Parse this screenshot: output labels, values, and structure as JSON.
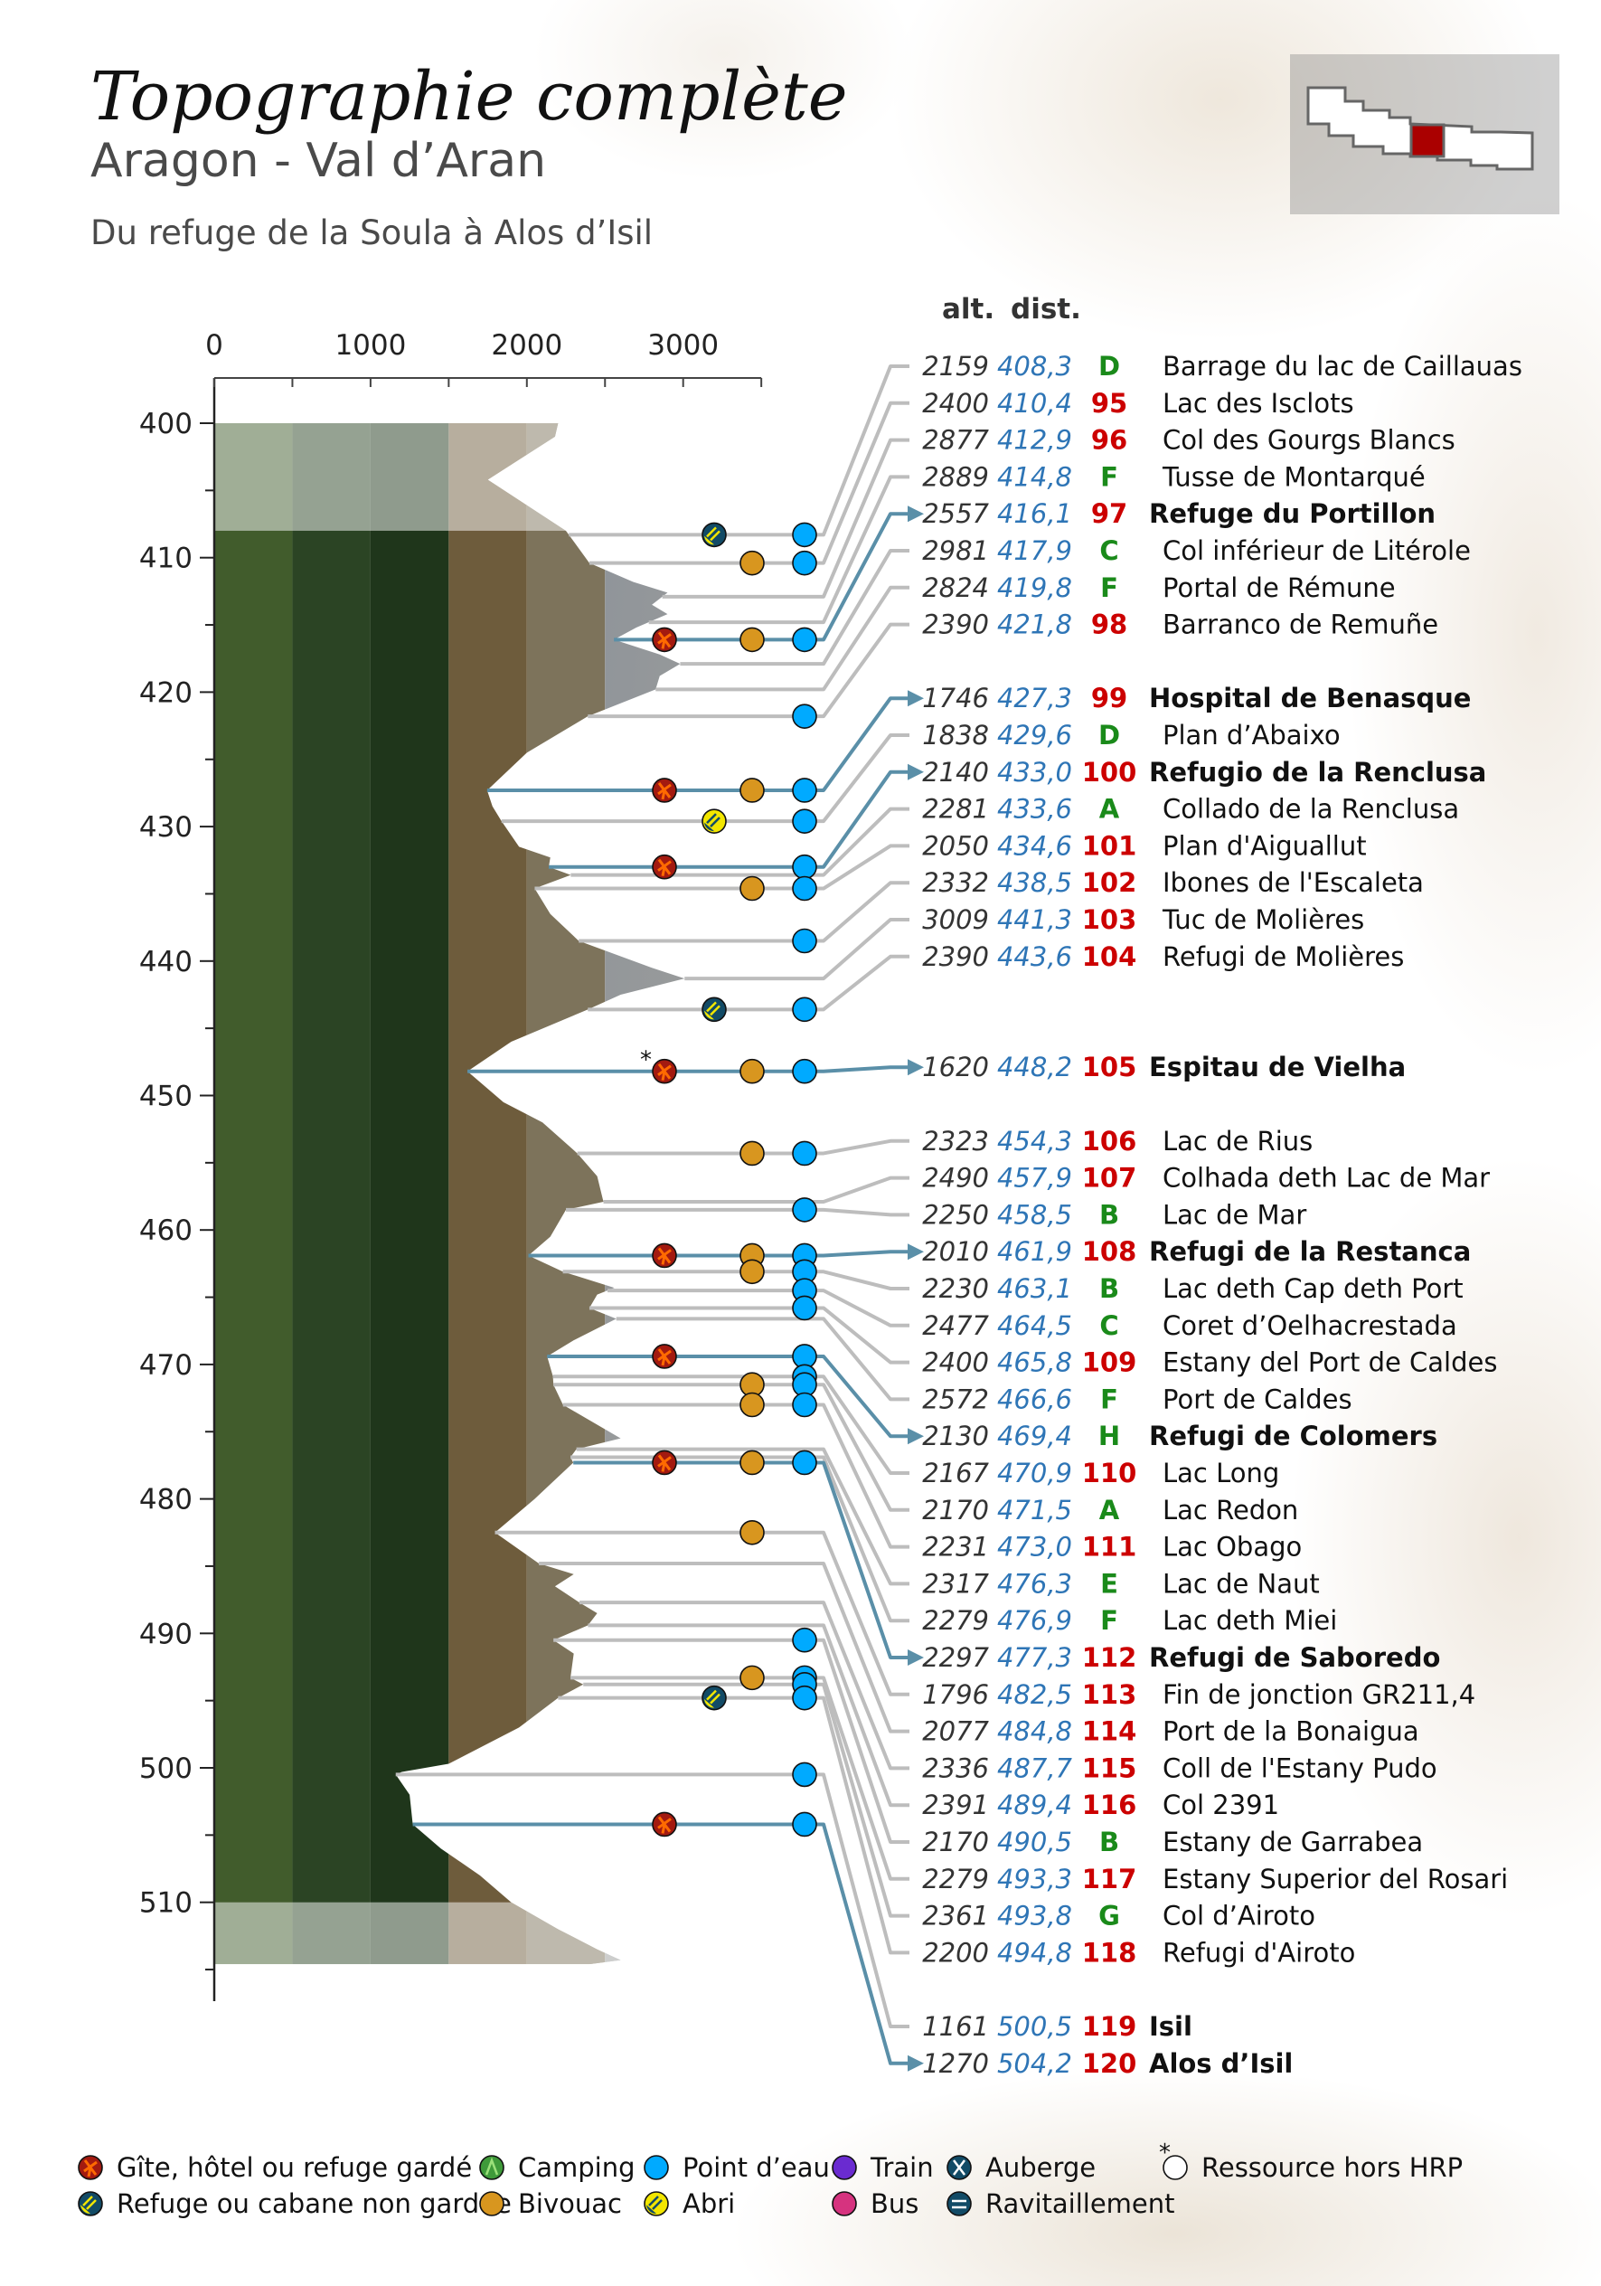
{
  "header": {
    "title": "Topographie complète",
    "region": "Aragon - Val d’Aran",
    "subtitle": "Du refuge de la Soula à Alos d’Isil"
  },
  "columns": {
    "alt": "alt.",
    "dist": "dist."
  },
  "colors": {
    "alt_text": "#333333",
    "dist_text": "#2e75b6",
    "stage_number": "#cc0000",
    "water_code": "#1a8a1a",
    "leader_line": "#bdbdbd",
    "refuge_line": "#5a8fa8",
    "minimap_highlight": "#aa0000"
  },
  "chart_data": {
    "type": "area",
    "orientation": "vertical-distance",
    "xlabel": "",
    "ylabel": "",
    "x_axis_ticks": [
      "0",
      "1000",
      "2000",
      "3000"
    ],
    "xlim": [
      0,
      3500
    ],
    "y_axis_ticks": [
      "400",
      "410",
      "420",
      "430",
      "440",
      "450",
      "460",
      "470",
      "480",
      "490",
      "500",
      "510"
    ],
    "ylim": [
      400,
      517
    ],
    "altitude_bands": [
      0,
      500,
      1000,
      1500,
      2000,
      2500
    ],
    "profile": [
      [
        400,
        2200
      ],
      [
        401,
        2180
      ],
      [
        404.2,
        1750
      ],
      [
        408,
        2250
      ],
      [
        410.4,
        2400
      ],
      [
        411.8,
        2680
      ],
      [
        412.6,
        2900
      ],
      [
        413.5,
        2800
      ],
      [
        414.2,
        2900
      ],
      [
        415.2,
        2700
      ],
      [
        416.1,
        2557
      ],
      [
        417.2,
        2850
      ],
      [
        417.9,
        2981
      ],
      [
        418.8,
        2850
      ],
      [
        419.8,
        2824
      ],
      [
        421.8,
        2390
      ],
      [
        424.5,
        2000
      ],
      [
        427.3,
        1746
      ],
      [
        428.5,
        1780
      ],
      [
        429.6,
        1838
      ],
      [
        431.5,
        1950
      ],
      [
        432.3,
        2150
      ],
      [
        433,
        2140
      ],
      [
        433.6,
        2281
      ],
      [
        434.6,
        2050
      ],
      [
        436.5,
        2150
      ],
      [
        438.5,
        2332
      ],
      [
        440.5,
        2800
      ],
      [
        441.3,
        3009
      ],
      [
        442.5,
        2600
      ],
      [
        443.6,
        2390
      ],
      [
        446,
        1900
      ],
      [
        448.2,
        1620
      ],
      [
        450.5,
        1850
      ],
      [
        452,
        2100
      ],
      [
        454.3,
        2323
      ],
      [
        456,
        2450
      ],
      [
        457.9,
        2490
      ],
      [
        458.5,
        2250
      ],
      [
        460.5,
        2150
      ],
      [
        461.9,
        2010
      ],
      [
        463.1,
        2230
      ],
      [
        464.3,
        2560
      ],
      [
        464.8,
        2450
      ],
      [
        465.8,
        2400
      ],
      [
        466.6,
        2572
      ],
      [
        468.2,
        2300
      ],
      [
        469.4,
        2130
      ],
      [
        470.9,
        2167
      ],
      [
        471.5,
        2170
      ],
      [
        473,
        2231
      ],
      [
        475.5,
        2600
      ],
      [
        476.3,
        2317
      ],
      [
        476.9,
        2279
      ],
      [
        477.3,
        2297
      ],
      [
        480,
        2050
      ],
      [
        482.5,
        1796
      ],
      [
        484.8,
        2077
      ],
      [
        485.6,
        2300
      ],
      [
        486.5,
        2180
      ],
      [
        487.7,
        2336
      ],
      [
        488.5,
        2450
      ],
      [
        489.4,
        2391
      ],
      [
        490.5,
        2170
      ],
      [
        491.5,
        2300
      ],
      [
        493.3,
        2279
      ],
      [
        493.8,
        2361
      ],
      [
        494.8,
        2200
      ],
      [
        497,
        1950
      ],
      [
        499.7,
        1500
      ],
      [
        500.3,
        1200
      ],
      [
        500.5,
        1161
      ],
      [
        502,
        1250
      ],
      [
        504.2,
        1270
      ],
      [
        506,
        1450
      ],
      [
        508,
        1700
      ],
      [
        510,
        1900
      ],
      [
        512,
        2200
      ],
      [
        513.5,
        2450
      ],
      [
        514.3,
        2600
      ],
      [
        514.6,
        2400
      ]
    ],
    "faded_ranges": [
      [
        400,
        408
      ],
      [
        510,
        514.6
      ]
    ]
  },
  "waypoints": [
    {
      "alt": "2159",
      "dist": "408,3",
      "code": "D",
      "name": "Barrage du lac de Caillauas",
      "bold": false,
      "arrow": false,
      "icons": [
        "refuge-non-gardee",
        "water"
      ]
    },
    {
      "alt": "2400",
      "dist": "410,4",
      "code": "95",
      "name": "Lac des Isclots",
      "bold": false,
      "arrow": false,
      "icons": [
        "bivouac",
        "water"
      ]
    },
    {
      "alt": "2877",
      "dist": "412,9",
      "code": "96",
      "name": "Col des Gourgs Blancs",
      "bold": false,
      "arrow": false,
      "icons": []
    },
    {
      "alt": "2889",
      "dist": "414,8",
      "code": "F",
      "name": "Tusse de Montarqué",
      "bold": false,
      "arrow": false,
      "icons": []
    },
    {
      "alt": "2557",
      "dist": "416,1",
      "code": "97",
      "name": "Refuge du Portillon",
      "bold": true,
      "arrow": true,
      "icons": [
        "gite",
        "bivouac",
        "water"
      ]
    },
    {
      "alt": "2981",
      "dist": "417,9",
      "code": "C",
      "name": "Col inférieur de Litérole",
      "bold": false,
      "arrow": false,
      "icons": []
    },
    {
      "alt": "2824",
      "dist": "419,8",
      "code": "F",
      "name": "Portal de Rémune",
      "bold": false,
      "arrow": false,
      "icons": []
    },
    {
      "alt": "2390",
      "dist": "421,8",
      "code": "98",
      "name": "Barranco de Remuñe",
      "bold": false,
      "arrow": false,
      "icons": [
        "water"
      ]
    },
    {
      "alt": "1746",
      "dist": "427,3",
      "code": "99",
      "name": "Hospital de Benasque",
      "bold": true,
      "arrow": true,
      "icons": [
        "gite",
        "bivouac",
        "water"
      ]
    },
    {
      "alt": "1838",
      "dist": "429,6",
      "code": "D",
      "name": "Plan d’Abaixo",
      "bold": false,
      "arrow": false,
      "icons": [
        "abri",
        "water"
      ]
    },
    {
      "alt": "2140",
      "dist": "433,0",
      "code": "100",
      "name": "Refugio de la Renclusa",
      "bold": true,
      "arrow": true,
      "icons": [
        "gite",
        "water"
      ]
    },
    {
      "alt": "2281",
      "dist": "433,6",
      "code": "A",
      "name": "Collado de la Renclusa",
      "bold": false,
      "arrow": false,
      "icons": []
    },
    {
      "alt": "2050",
      "dist": "434,6",
      "code": "101",
      "name": "Plan d'Aiguallut",
      "bold": false,
      "arrow": false,
      "icons": [
        "bivouac",
        "water"
      ]
    },
    {
      "alt": "2332",
      "dist": "438,5",
      "code": "102",
      "name": "Ibones de l'Escaleta",
      "bold": false,
      "arrow": false,
      "icons": [
        "water"
      ]
    },
    {
      "alt": "3009",
      "dist": "441,3",
      "code": "103",
      "name": "Tuc de Molières",
      "bold": false,
      "arrow": false,
      "icons": []
    },
    {
      "alt": "2390",
      "dist": "443,6",
      "code": "104",
      "name": "Refugi de Molières",
      "bold": false,
      "arrow": false,
      "icons": [
        "refuge-non-gardee",
        "water"
      ]
    },
    {
      "alt": "1620",
      "dist": "448,2",
      "code": "105",
      "name": "Espitau de Vielha",
      "bold": true,
      "arrow": true,
      "hors_hrp": true,
      "icons": [
        "gite",
        "bivouac",
        "water"
      ]
    },
    {
      "alt": "2323",
      "dist": "454,3",
      "code": "106",
      "name": "Lac de Rius",
      "bold": false,
      "arrow": false,
      "icons": [
        "bivouac",
        "water"
      ]
    },
    {
      "alt": "2490",
      "dist": "457,9",
      "code": "107",
      "name": "Colhada deth Lac de Mar",
      "bold": false,
      "arrow": false,
      "icons": []
    },
    {
      "alt": "2250",
      "dist": "458,5",
      "code": "B",
      "name": "Lac de Mar",
      "bold": false,
      "arrow": false,
      "icons": [
        "water"
      ]
    },
    {
      "alt": "2010",
      "dist": "461,9",
      "code": "108",
      "name": "Refugi de la Restanca",
      "bold": true,
      "arrow": true,
      "icons": [
        "gite",
        "bivouac",
        "water"
      ]
    },
    {
      "alt": "2230",
      "dist": "463,1",
      "code": "B",
      "name": "Lac deth Cap deth Port",
      "bold": false,
      "arrow": false,
      "icons": [
        "bivouac",
        "water"
      ]
    },
    {
      "alt": "2477",
      "dist": "464,5",
      "code": "C",
      "name": "Coret d’Oelhacrestada",
      "bold": false,
      "arrow": false,
      "icons": [
        "water"
      ]
    },
    {
      "alt": "2400",
      "dist": "465,8",
      "code": "109",
      "name": "Estany del Port de Caldes",
      "bold": false,
      "arrow": false,
      "icons": [
        "water"
      ]
    },
    {
      "alt": "2572",
      "dist": "466,6",
      "code": "F",
      "name": "Port de Caldes",
      "bold": false,
      "arrow": false,
      "icons": []
    },
    {
      "alt": "2130",
      "dist": "469,4",
      "code": "H",
      "name": "Refugi de Colomers",
      "bold": true,
      "arrow": true,
      "icons": [
        "gite",
        "water"
      ]
    },
    {
      "alt": "2167",
      "dist": "470,9",
      "code": "110",
      "name": "Lac Long",
      "bold": false,
      "arrow": false,
      "icons": [
        "water"
      ]
    },
    {
      "alt": "2170",
      "dist": "471,5",
      "code": "A",
      "name": "Lac Redon",
      "bold": false,
      "arrow": false,
      "icons": [
        "bivouac",
        "water"
      ]
    },
    {
      "alt": "2231",
      "dist": "473,0",
      "code": "111",
      "name": "Lac Obago",
      "bold": false,
      "arrow": false,
      "icons": [
        "bivouac",
        "water"
      ]
    },
    {
      "alt": "2317",
      "dist": "476,3",
      "code": "E",
      "name": "Lac de Naut",
      "bold": false,
      "arrow": false,
      "icons": []
    },
    {
      "alt": "2279",
      "dist": "476,9",
      "code": "F",
      "name": "Lac deth Miei",
      "bold": false,
      "arrow": false,
      "icons": []
    },
    {
      "alt": "2297",
      "dist": "477,3",
      "code": "112",
      "name": "Refugi de Saboredo",
      "bold": true,
      "arrow": true,
      "icons": [
        "gite",
        "bivouac",
        "water"
      ]
    },
    {
      "alt": "1796",
      "dist": "482,5",
      "code": "113",
      "name": "Fin de jonction GR211,4",
      "bold": false,
      "arrow": false,
      "icons": [
        "bivouac"
      ]
    },
    {
      "alt": "2077",
      "dist": "484,8",
      "code": "114",
      "name": "Port de la Bonaigua",
      "bold": false,
      "arrow": false,
      "icons": []
    },
    {
      "alt": "2336",
      "dist": "487,7",
      "code": "115",
      "name": "Coll de l'Estany Pudo",
      "bold": false,
      "arrow": false,
      "icons": []
    },
    {
      "alt": "2391",
      "dist": "489,4",
      "code": "116",
      "name": "Col 2391",
      "bold": false,
      "arrow": false,
      "icons": []
    },
    {
      "alt": "2170",
      "dist": "490,5",
      "code": "B",
      "name": "Estany de Garrabea",
      "bold": false,
      "arrow": false,
      "icons": [
        "water"
      ]
    },
    {
      "alt": "2279",
      "dist": "493,3",
      "code": "117",
      "name": "Estany Superior del Rosari",
      "bold": false,
      "arrow": false,
      "icons": [
        "bivouac",
        "water"
      ]
    },
    {
      "alt": "2361",
      "dist": "493,8",
      "code": "G",
      "name": "Col d’Airoto",
      "bold": false,
      "arrow": false,
      "icons": [
        "water"
      ]
    },
    {
      "alt": "2200",
      "dist": "494,8",
      "code": "118",
      "name": "Refugi d'Airoto",
      "bold": false,
      "arrow": false,
      "icons": [
        "refuge-non-gardee",
        "water"
      ]
    },
    {
      "alt": "1161",
      "dist": "500,5",
      "code": "119",
      "name": "Isil",
      "bold": true,
      "arrow": false,
      "icons": [
        "water"
      ]
    },
    {
      "alt": "1270",
      "dist": "504,2",
      "code": "120",
      "name": "Alos d’Isil",
      "bold": true,
      "arrow": true,
      "icons": [
        "gite",
        "water"
      ]
    }
  ],
  "legend": [
    {
      "icon": "gite",
      "label": "Gîte, hôtel ou refuge gardé"
    },
    {
      "icon": "refuge-non-gardee",
      "label": "Refuge ou cabane non gardée"
    },
    {
      "icon": "camping",
      "label": "Camping"
    },
    {
      "icon": "bivouac",
      "label": "Bivouac"
    },
    {
      "icon": "water",
      "label": "Point d’eau"
    },
    {
      "icon": "abri",
      "label": "Abri"
    },
    {
      "icon": "train",
      "label": "Train"
    },
    {
      "icon": "bus",
      "label": "Bus"
    },
    {
      "icon": "auberge",
      "label": "Auberge"
    },
    {
      "icon": "ravitaillement",
      "label": "Ravitaillement"
    },
    {
      "icon": "hors-hrp",
      "label": "Ressource hors HRP",
      "marker": "*"
    }
  ],
  "minimap": {
    "highlight_segment": 4,
    "segments": 8
  }
}
